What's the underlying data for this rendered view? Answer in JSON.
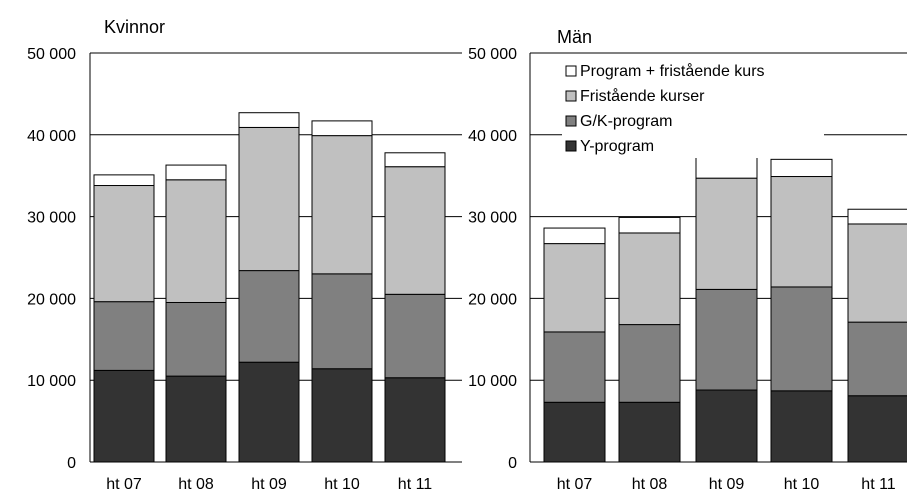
{
  "colors": {
    "Y-program": "#333333",
    "G/K-program": "#808080",
    "Fristående kurser": "#c0c0c0",
    "Program + fristående kurs": "#ffffff",
    "gridline": "#000000",
    "bar_outline": "#000000"
  },
  "legend_placement": "top-left",
  "chart_data": [
    {
      "type": "bar",
      "stacked": true,
      "title": "Kvinnor",
      "categories": [
        "ht 07",
        "ht 08",
        "ht 09",
        "ht 10",
        "ht 11"
      ],
      "ylim": [
        0,
        50000
      ],
      "yticks": [
        0,
        10000,
        20000,
        30000,
        40000,
        50000
      ],
      "ytick_labels": [
        "0",
        "10 000",
        "20 000",
        "30 000",
        "40 000",
        "50 000"
      ],
      "grid": true,
      "series": [
        {
          "name": "Y-program",
          "values": [
            11200,
            10500,
            12200,
            11400,
            10300
          ]
        },
        {
          "name": "G/K-program",
          "values": [
            8400,
            9000,
            11200,
            11600,
            10200
          ]
        },
        {
          "name": "Fristående kurser",
          "values": [
            14200,
            15000,
            17500,
            16900,
            15600
          ]
        },
        {
          "name": "Program + fristående kurs",
          "values": [
            1300,
            1800,
            1800,
            1800,
            1700
          ]
        }
      ]
    },
    {
      "type": "bar",
      "stacked": true,
      "title": "Män",
      "categories": [
        "ht 07",
        "ht 08",
        "ht 09",
        "ht 10",
        "ht 11"
      ],
      "ylim": [
        0,
        50000
      ],
      "yticks": [
        0,
        10000,
        20000,
        30000,
        40000,
        50000
      ],
      "ytick_labels": [
        "0",
        "10 000",
        "20 000",
        "30 000",
        "40 000",
        "50 000"
      ],
      "grid": true,
      "legend": [
        "Program + fristående kurs",
        "Fristående kurser",
        "G/K-program",
        "Y-program"
      ],
      "series": [
        {
          "name": "Y-program",
          "values": [
            7300,
            7300,
            8800,
            8700,
            8100
          ]
        },
        {
          "name": "G/K-program",
          "values": [
            8600,
            9500,
            12300,
            12700,
            9000
          ]
        },
        {
          "name": "Fristående kurser",
          "values": [
            10800,
            11200,
            13600,
            13500,
            12000
          ]
        },
        {
          "name": "Program + fristående kurs",
          "values": [
            1900,
            1900,
            2600,
            2100,
            1800
          ]
        }
      ]
    }
  ]
}
